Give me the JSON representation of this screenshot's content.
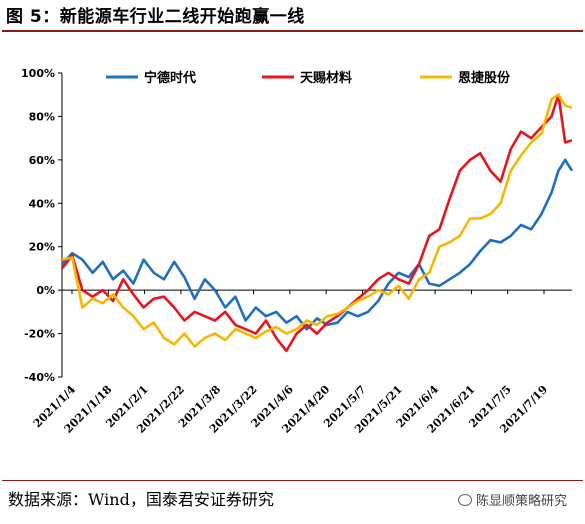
{
  "header": {
    "title": "图 5：新能源车行业二线开始跑赢一线"
  },
  "footer": {
    "source": "数据来源：Wind，国泰君安证券研究",
    "watermark": "陈显顺策略研究"
  },
  "chart_data": {
    "type": "line",
    "title": "",
    "xlabel": "",
    "ylabel": "",
    "ylim": [
      -40,
      100
    ],
    "yticks": [
      -40,
      -20,
      0,
      20,
      40,
      60,
      80,
      100
    ],
    "ytick_labels": [
      "-40%",
      "-20%",
      "0%",
      "20%",
      "40%",
      "60%",
      "80%",
      "100%"
    ],
    "xtick_labels": [
      "2021/1/4",
      "2021/1/18",
      "2021/2/1",
      "2021/2/22",
      "2021/3/8",
      "2021/3/22",
      "2021/4/6",
      "2021/4/20",
      "2021/5/7",
      "2021/5/21",
      "2021/6/4",
      "2021/6/21",
      "2021/7/5",
      "2021/7/19"
    ],
    "x_range": [
      0,
      150
    ],
    "legend_position": "top",
    "grid": false,
    "series": [
      {
        "name": "宁德时代",
        "color": "#1f6fbf",
        "points": [
          [
            0,
            12
          ],
          [
            3,
            17
          ],
          [
            6,
            14
          ],
          [
            9,
            8
          ],
          [
            12,
            13
          ],
          [
            15,
            5
          ],
          [
            18,
            9
          ],
          [
            21,
            3
          ],
          [
            24,
            14
          ],
          [
            27,
            8
          ],
          [
            30,
            5
          ],
          [
            33,
            13
          ],
          [
            36,
            6
          ],
          [
            39,
            -4
          ],
          [
            42,
            5
          ],
          [
            45,
            0
          ],
          [
            48,
            -8
          ],
          [
            51,
            -3
          ],
          [
            54,
            -14
          ],
          [
            57,
            -8
          ],
          [
            60,
            -12
          ],
          [
            63,
            -10
          ],
          [
            66,
            -15
          ],
          [
            69,
            -12
          ],
          [
            72,
            -18
          ],
          [
            75,
            -13
          ],
          [
            78,
            -16
          ],
          [
            81,
            -15
          ],
          [
            84,
            -10
          ],
          [
            87,
            -12
          ],
          [
            90,
            -10
          ],
          [
            93,
            -5
          ],
          [
            96,
            3
          ],
          [
            99,
            8
          ],
          [
            102,
            6
          ],
          [
            105,
            12
          ],
          [
            108,
            3
          ],
          [
            111,
            2
          ],
          [
            114,
            5
          ],
          [
            117,
            8
          ],
          [
            120,
            12
          ],
          [
            123,
            18
          ],
          [
            126,
            23
          ],
          [
            129,
            22
          ],
          [
            132,
            25
          ],
          [
            135,
            30
          ],
          [
            138,
            28
          ],
          [
            141,
            35
          ],
          [
            144,
            45
          ],
          [
            146,
            55
          ],
          [
            148,
            60
          ],
          [
            150,
            55
          ]
        ]
      },
      {
        "name": "天赐材料",
        "color": "#e8141c",
        "points": [
          [
            0,
            10
          ],
          [
            3,
            16
          ],
          [
            6,
            0
          ],
          [
            9,
            -3
          ],
          [
            12,
            0
          ],
          [
            15,
            -5
          ],
          [
            18,
            5
          ],
          [
            21,
            -2
          ],
          [
            24,
            -8
          ],
          [
            27,
            -4
          ],
          [
            30,
            -3
          ],
          [
            33,
            -8
          ],
          [
            36,
            -14
          ],
          [
            39,
            -10
          ],
          [
            42,
            -12
          ],
          [
            45,
            -14
          ],
          [
            48,
            -10
          ],
          [
            51,
            -16
          ],
          [
            54,
            -18
          ],
          [
            57,
            -20
          ],
          [
            60,
            -14
          ],
          [
            63,
            -22
          ],
          [
            66,
            -28
          ],
          [
            69,
            -20
          ],
          [
            72,
            -16
          ],
          [
            75,
            -20
          ],
          [
            78,
            -15
          ],
          [
            81,
            -12
          ],
          [
            84,
            -8
          ],
          [
            87,
            -4
          ],
          [
            90,
            0
          ],
          [
            93,
            5
          ],
          [
            96,
            8
          ],
          [
            99,
            5
          ],
          [
            102,
            3
          ],
          [
            105,
            12
          ],
          [
            108,
            25
          ],
          [
            111,
            28
          ],
          [
            114,
            42
          ],
          [
            117,
            55
          ],
          [
            120,
            60
          ],
          [
            123,
            63
          ],
          [
            126,
            55
          ],
          [
            129,
            50
          ],
          [
            132,
            65
          ],
          [
            135,
            73
          ],
          [
            138,
            70
          ],
          [
            141,
            75
          ],
          [
            144,
            80
          ],
          [
            146,
            90
          ],
          [
            148,
            68
          ],
          [
            150,
            69
          ]
        ]
      },
      {
        "name": "恩捷股份",
        "color": "#f5b800",
        "points": [
          [
            0,
            14
          ],
          [
            3,
            15
          ],
          [
            6,
            -8
          ],
          [
            9,
            -4
          ],
          [
            12,
            -6
          ],
          [
            15,
            -2
          ],
          [
            18,
            -8
          ],
          [
            21,
            -12
          ],
          [
            24,
            -18
          ],
          [
            27,
            -15
          ],
          [
            30,
            -22
          ],
          [
            33,
            -25
          ],
          [
            36,
            -20
          ],
          [
            39,
            -26
          ],
          [
            42,
            -22
          ],
          [
            45,
            -20
          ],
          [
            48,
            -23
          ],
          [
            51,
            -18
          ],
          [
            54,
            -20
          ],
          [
            57,
            -22
          ],
          [
            60,
            -19
          ],
          [
            63,
            -17
          ],
          [
            66,
            -20
          ],
          [
            69,
            -18
          ],
          [
            72,
            -14
          ],
          [
            75,
            -16
          ],
          [
            78,
            -12
          ],
          [
            81,
            -11
          ],
          [
            84,
            -8
          ],
          [
            87,
            -5
          ],
          [
            90,
            -3
          ],
          [
            93,
            0
          ],
          [
            96,
            -2
          ],
          [
            99,
            2
          ],
          [
            102,
            -4
          ],
          [
            105,
            5
          ],
          [
            108,
            8
          ],
          [
            111,
            20
          ],
          [
            114,
            22
          ],
          [
            117,
            25
          ],
          [
            120,
            33
          ],
          [
            123,
            33
          ],
          [
            126,
            35
          ],
          [
            129,
            40
          ],
          [
            132,
            55
          ],
          [
            135,
            62
          ],
          [
            138,
            68
          ],
          [
            141,
            72
          ],
          [
            144,
            88
          ],
          [
            146,
            90
          ],
          [
            148,
            85
          ],
          [
            150,
            84
          ]
        ]
      }
    ]
  }
}
